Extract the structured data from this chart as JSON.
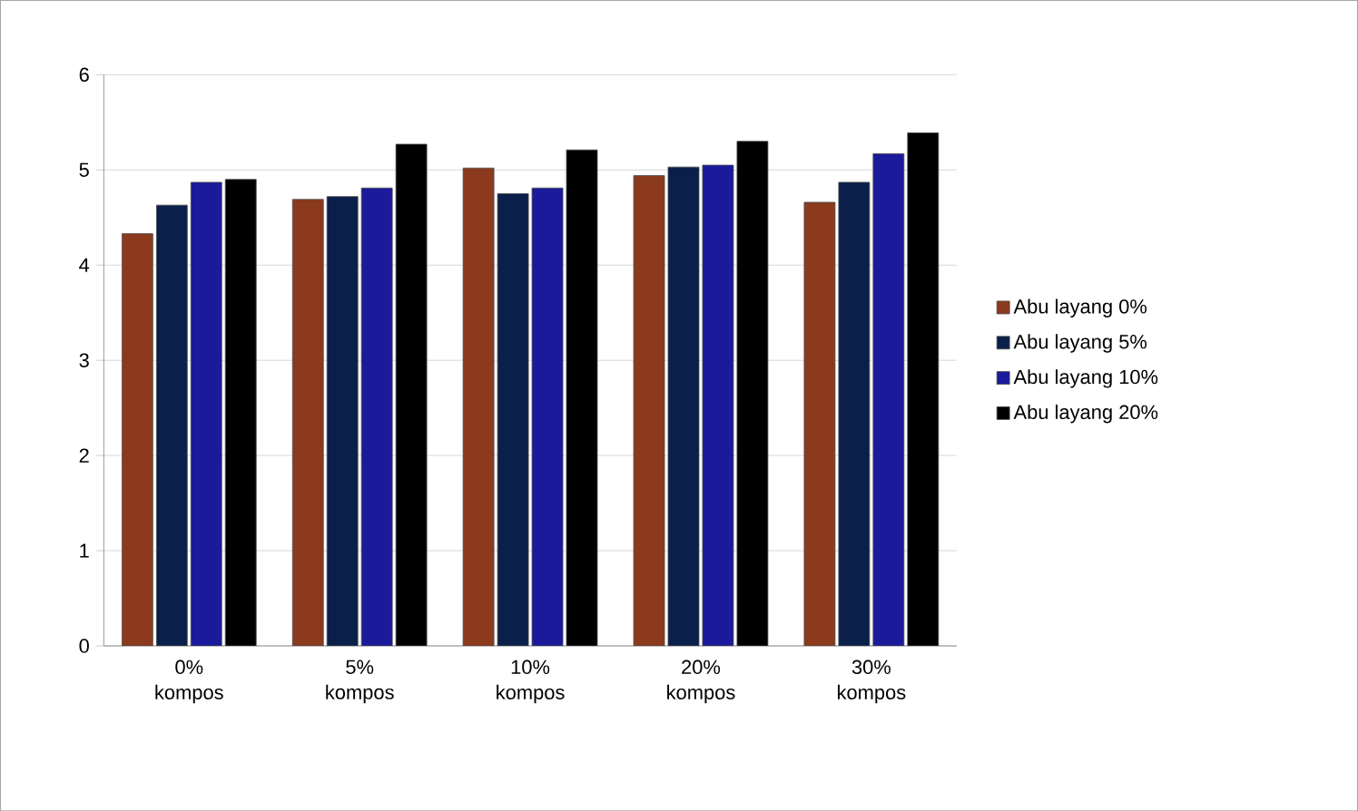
{
  "chart_data": {
    "type": "bar",
    "categories": [
      "0% kompos",
      "5% kompos",
      "10% kompos",
      "20% kompos",
      "30% kompos"
    ],
    "series": [
      {
        "name": "Abu layang 0%",
        "color": "#8b3a1e",
        "values": [
          4.33,
          4.69,
          5.02,
          4.94,
          4.66
        ]
      },
      {
        "name": "Abu layang 5%",
        "color": "#0a1f4a",
        "values": [
          4.63,
          4.72,
          4.75,
          5.03,
          4.87
        ]
      },
      {
        "name": "Abu layang 10%",
        "color": "#1a1a9a",
        "values": [
          4.87,
          4.81,
          4.81,
          5.05,
          5.17
        ]
      },
      {
        "name": "Abu layang 20%",
        "color": "#000000",
        "values": [
          4.9,
          5.27,
          5.21,
          5.3,
          5.39
        ]
      }
    ],
    "ylim": [
      0,
      6
    ],
    "yticks": [
      0,
      1,
      2,
      3,
      4,
      5,
      6
    ],
    "grid": "y",
    "legend": "right"
  }
}
